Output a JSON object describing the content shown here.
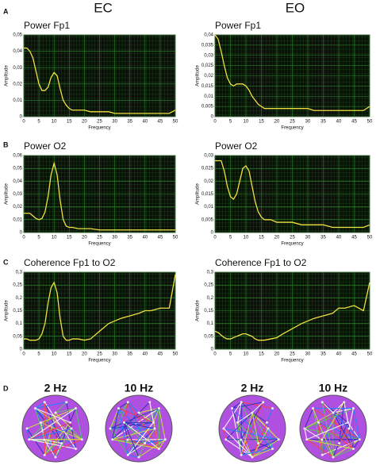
{
  "headers": [
    "EC",
    "EO"
  ],
  "panel_labels": [
    "A",
    "B",
    "C",
    "D"
  ],
  "network_labels": [
    "2 Hz",
    "10 Hz",
    "2 Hz",
    "10 Hz"
  ],
  "chart_data": [
    {
      "type": "line",
      "title": "Power Fp1",
      "xlabel": "Frequency",
      "ylabel": "Amplitude",
      "color": "#f0e040",
      "grid": true,
      "x": [
        0,
        1,
        2,
        3,
        4,
        5,
        6,
        7,
        8,
        9,
        10,
        11,
        12,
        13,
        14,
        15,
        16,
        18,
        20,
        22,
        25,
        28,
        30,
        32,
        35,
        38,
        40,
        42,
        45,
        48,
        50
      ],
      "values": [
        0.042,
        0.042,
        0.04,
        0.036,
        0.028,
        0.02,
        0.016,
        0.016,
        0.018,
        0.024,
        0.027,
        0.025,
        0.017,
        0.01,
        0.007,
        0.005,
        0.004,
        0.004,
        0.004,
        0.003,
        0.003,
        0.003,
        0.002,
        0.002,
        0.002,
        0.002,
        0.002,
        0.002,
        0.002,
        0.002,
        0.004
      ],
      "xlim": [
        0,
        50
      ],
      "xticks": [
        0,
        5,
        10,
        15,
        20,
        25,
        30,
        35,
        40,
        45,
        50
      ],
      "ylim": [
        0,
        0.05
      ],
      "yticks": [
        0,
        {
          "value": 0.01,
          "label": "0,01"
        },
        {
          "value": 0.02,
          "label": "0,02"
        },
        {
          "value": 0.03,
          "label": "0,03"
        },
        {
          "value": 0.04,
          "label": "0,04"
        },
        {
          "value": 0.05,
          "label": "0,05"
        }
      ]
    },
    {
      "type": "line",
      "title": "Power Fp1",
      "xlabel": "Frequency",
      "ylabel": "Amplitude",
      "color": "#f0e040",
      "grid": true,
      "x": [
        0,
        1,
        2,
        3,
        4,
        5,
        6,
        7,
        8,
        9,
        10,
        11,
        12,
        13,
        14,
        15,
        16,
        18,
        20,
        22,
        25,
        28,
        30,
        32,
        35,
        38,
        40,
        42,
        45,
        48,
        50
      ],
      "values": [
        0.04,
        0.038,
        0.032,
        0.025,
        0.019,
        0.016,
        0.015,
        0.016,
        0.016,
        0.016,
        0.015,
        0.013,
        0.01,
        0.008,
        0.006,
        0.005,
        0.004,
        0.004,
        0.004,
        0.004,
        0.004,
        0.004,
        0.004,
        0.003,
        0.003,
        0.003,
        0.003,
        0.003,
        0.003,
        0.003,
        0.005
      ],
      "xlim": [
        0,
        50
      ],
      "xticks": [
        0,
        5,
        10,
        15,
        20,
        25,
        30,
        35,
        40,
        45,
        50
      ],
      "ylim": [
        0,
        0.04
      ],
      "yticks": [
        0,
        {
          "value": 0.005,
          "label": "0,005"
        },
        {
          "value": 0.01,
          "label": "0,01"
        },
        {
          "value": 0.015,
          "label": "0,015"
        },
        {
          "value": 0.02,
          "label": "0,02"
        },
        {
          "value": 0.025,
          "label": "0,025"
        },
        {
          "value": 0.03,
          "label": "0,03"
        },
        {
          "value": 0.035,
          "label": "0,035"
        },
        {
          "value": 0.04,
          "label": "0,04"
        }
      ]
    },
    {
      "type": "line",
      "title": "Power O2",
      "xlabel": "Frequency",
      "ylabel": "Amplitude",
      "color": "#f0e040",
      "grid": true,
      "x": [
        0,
        1,
        2,
        3,
        4,
        5,
        6,
        7,
        8,
        9,
        10,
        11,
        12,
        13,
        14,
        15,
        16,
        18,
        20,
        22,
        25,
        28,
        30,
        32,
        35,
        38,
        40,
        42,
        45,
        48,
        50
      ],
      "values": [
        0.015,
        0.015,
        0.015,
        0.013,
        0.011,
        0.01,
        0.011,
        0.016,
        0.028,
        0.045,
        0.054,
        0.045,
        0.025,
        0.01,
        0.005,
        0.004,
        0.004,
        0.003,
        0.003,
        0.003,
        0.002,
        0.002,
        0.002,
        0.002,
        0.002,
        0.002,
        0.002,
        0.002,
        0.002,
        0.002,
        0.002
      ],
      "xlim": [
        0,
        50
      ],
      "xticks": [
        0,
        5,
        10,
        15,
        20,
        25,
        30,
        35,
        40,
        45,
        50
      ],
      "ylim": [
        0,
        0.06
      ],
      "yticks": [
        0,
        {
          "value": 0.01,
          "label": "0,01"
        },
        {
          "value": 0.02,
          "label": "0,02"
        },
        {
          "value": 0.03,
          "label": "0,03"
        },
        {
          "value": 0.04,
          "label": "0,04"
        },
        {
          "value": 0.05,
          "label": "0,05"
        },
        {
          "value": 0.06,
          "label": "0,06"
        }
      ]
    },
    {
      "type": "line",
      "title": "Power O2",
      "xlabel": "Frequency",
      "ylabel": "Amplitude",
      "color": "#f0e040",
      "grid": true,
      "x": [
        0,
        1,
        2,
        3,
        4,
        5,
        6,
        7,
        8,
        9,
        10,
        11,
        12,
        13,
        14,
        15,
        16,
        18,
        20,
        22,
        25,
        28,
        30,
        32,
        35,
        38,
        40,
        42,
        45,
        48,
        50
      ],
      "values": [
        0.028,
        0.028,
        0.028,
        0.024,
        0.018,
        0.014,
        0.013,
        0.015,
        0.02,
        0.025,
        0.026,
        0.024,
        0.018,
        0.012,
        0.008,
        0.006,
        0.005,
        0.005,
        0.004,
        0.004,
        0.004,
        0.003,
        0.003,
        0.003,
        0.003,
        0.002,
        0.002,
        0.002,
        0.002,
        0.002,
        0.003
      ],
      "xlim": [
        0,
        50
      ],
      "xticks": [
        0,
        5,
        10,
        15,
        20,
        25,
        30,
        35,
        40,
        45,
        50
      ],
      "ylim": [
        0,
        0.03
      ],
      "yticks": [
        0,
        {
          "value": 0.005,
          "label": "0,005"
        },
        {
          "value": 0.01,
          "label": "0,01"
        },
        {
          "value": 0.015,
          "label": "0,015"
        },
        {
          "value": 0.02,
          "label": "0,02"
        },
        {
          "value": 0.025,
          "label": "0,025"
        },
        {
          "value": 0.03,
          "label": "0,03"
        }
      ]
    },
    {
      "type": "line",
      "title": "Coherence Fp1 to O2",
      "xlabel": "Frequency",
      "ylabel": "Amplitude",
      "color": "#f0e040",
      "grid": true,
      "x": [
        0,
        1,
        2,
        3,
        4,
        5,
        6,
        7,
        8,
        9,
        10,
        11,
        12,
        13,
        14,
        15,
        16,
        18,
        20,
        22,
        25,
        28,
        30,
        32,
        35,
        38,
        40,
        42,
        45,
        48,
        50
      ],
      "values": [
        0.04,
        0.04,
        0.035,
        0.035,
        0.035,
        0.04,
        0.06,
        0.1,
        0.18,
        0.24,
        0.26,
        0.22,
        0.12,
        0.05,
        0.035,
        0.035,
        0.04,
        0.04,
        0.035,
        0.04,
        0.07,
        0.1,
        0.11,
        0.12,
        0.13,
        0.14,
        0.15,
        0.15,
        0.16,
        0.16,
        0.29
      ],
      "xlim": [
        0,
        50
      ],
      "xticks": [
        0,
        5,
        10,
        15,
        20,
        25,
        30,
        35,
        40,
        45,
        50
      ],
      "ylim": [
        0,
        0.3
      ],
      "yticks": [
        0,
        {
          "value": 0.05,
          "label": "0,05"
        },
        {
          "value": 0.1,
          "label": "0,1"
        },
        {
          "value": 0.15,
          "label": "0,15"
        },
        {
          "value": 0.2,
          "label": "0,2"
        },
        {
          "value": 0.25,
          "label": "0,25"
        },
        {
          "value": 0.3,
          "label": "0,3"
        }
      ]
    },
    {
      "type": "line",
      "title": "Coherence Fp1 to O2",
      "xlabel": "Frequency",
      "ylabel": "Amplitude",
      "color": "#f0e040",
      "grid": true,
      "x": [
        0,
        1,
        2,
        3,
        4,
        5,
        6,
        7,
        8,
        9,
        10,
        11,
        12,
        13,
        14,
        15,
        16,
        18,
        20,
        22,
        25,
        28,
        30,
        32,
        35,
        38,
        40,
        42,
        45,
        48,
        50
      ],
      "values": [
        0.07,
        0.065,
        0.055,
        0.045,
        0.04,
        0.04,
        0.045,
        0.05,
        0.055,
        0.06,
        0.06,
        0.055,
        0.05,
        0.04,
        0.035,
        0.035,
        0.035,
        0.04,
        0.045,
        0.06,
        0.08,
        0.1,
        0.11,
        0.12,
        0.13,
        0.14,
        0.16,
        0.16,
        0.17,
        0.15,
        0.26
      ],
      "xlim": [
        0,
        50
      ],
      "xticks": [
        0,
        5,
        10,
        15,
        20,
        25,
        30,
        35,
        40,
        45,
        50
      ],
      "ylim": [
        0,
        0.3
      ],
      "yticks": [
        0,
        {
          "value": 0.05,
          "label": "0,05"
        },
        {
          "value": 0.1,
          "label": "0,1"
        },
        {
          "value": 0.15,
          "label": "0,15"
        },
        {
          "value": 0.2,
          "label": "0,2"
        },
        {
          "value": 0.25,
          "label": "0,25"
        },
        {
          "value": 0.3,
          "label": "0,3"
        }
      ]
    }
  ]
}
